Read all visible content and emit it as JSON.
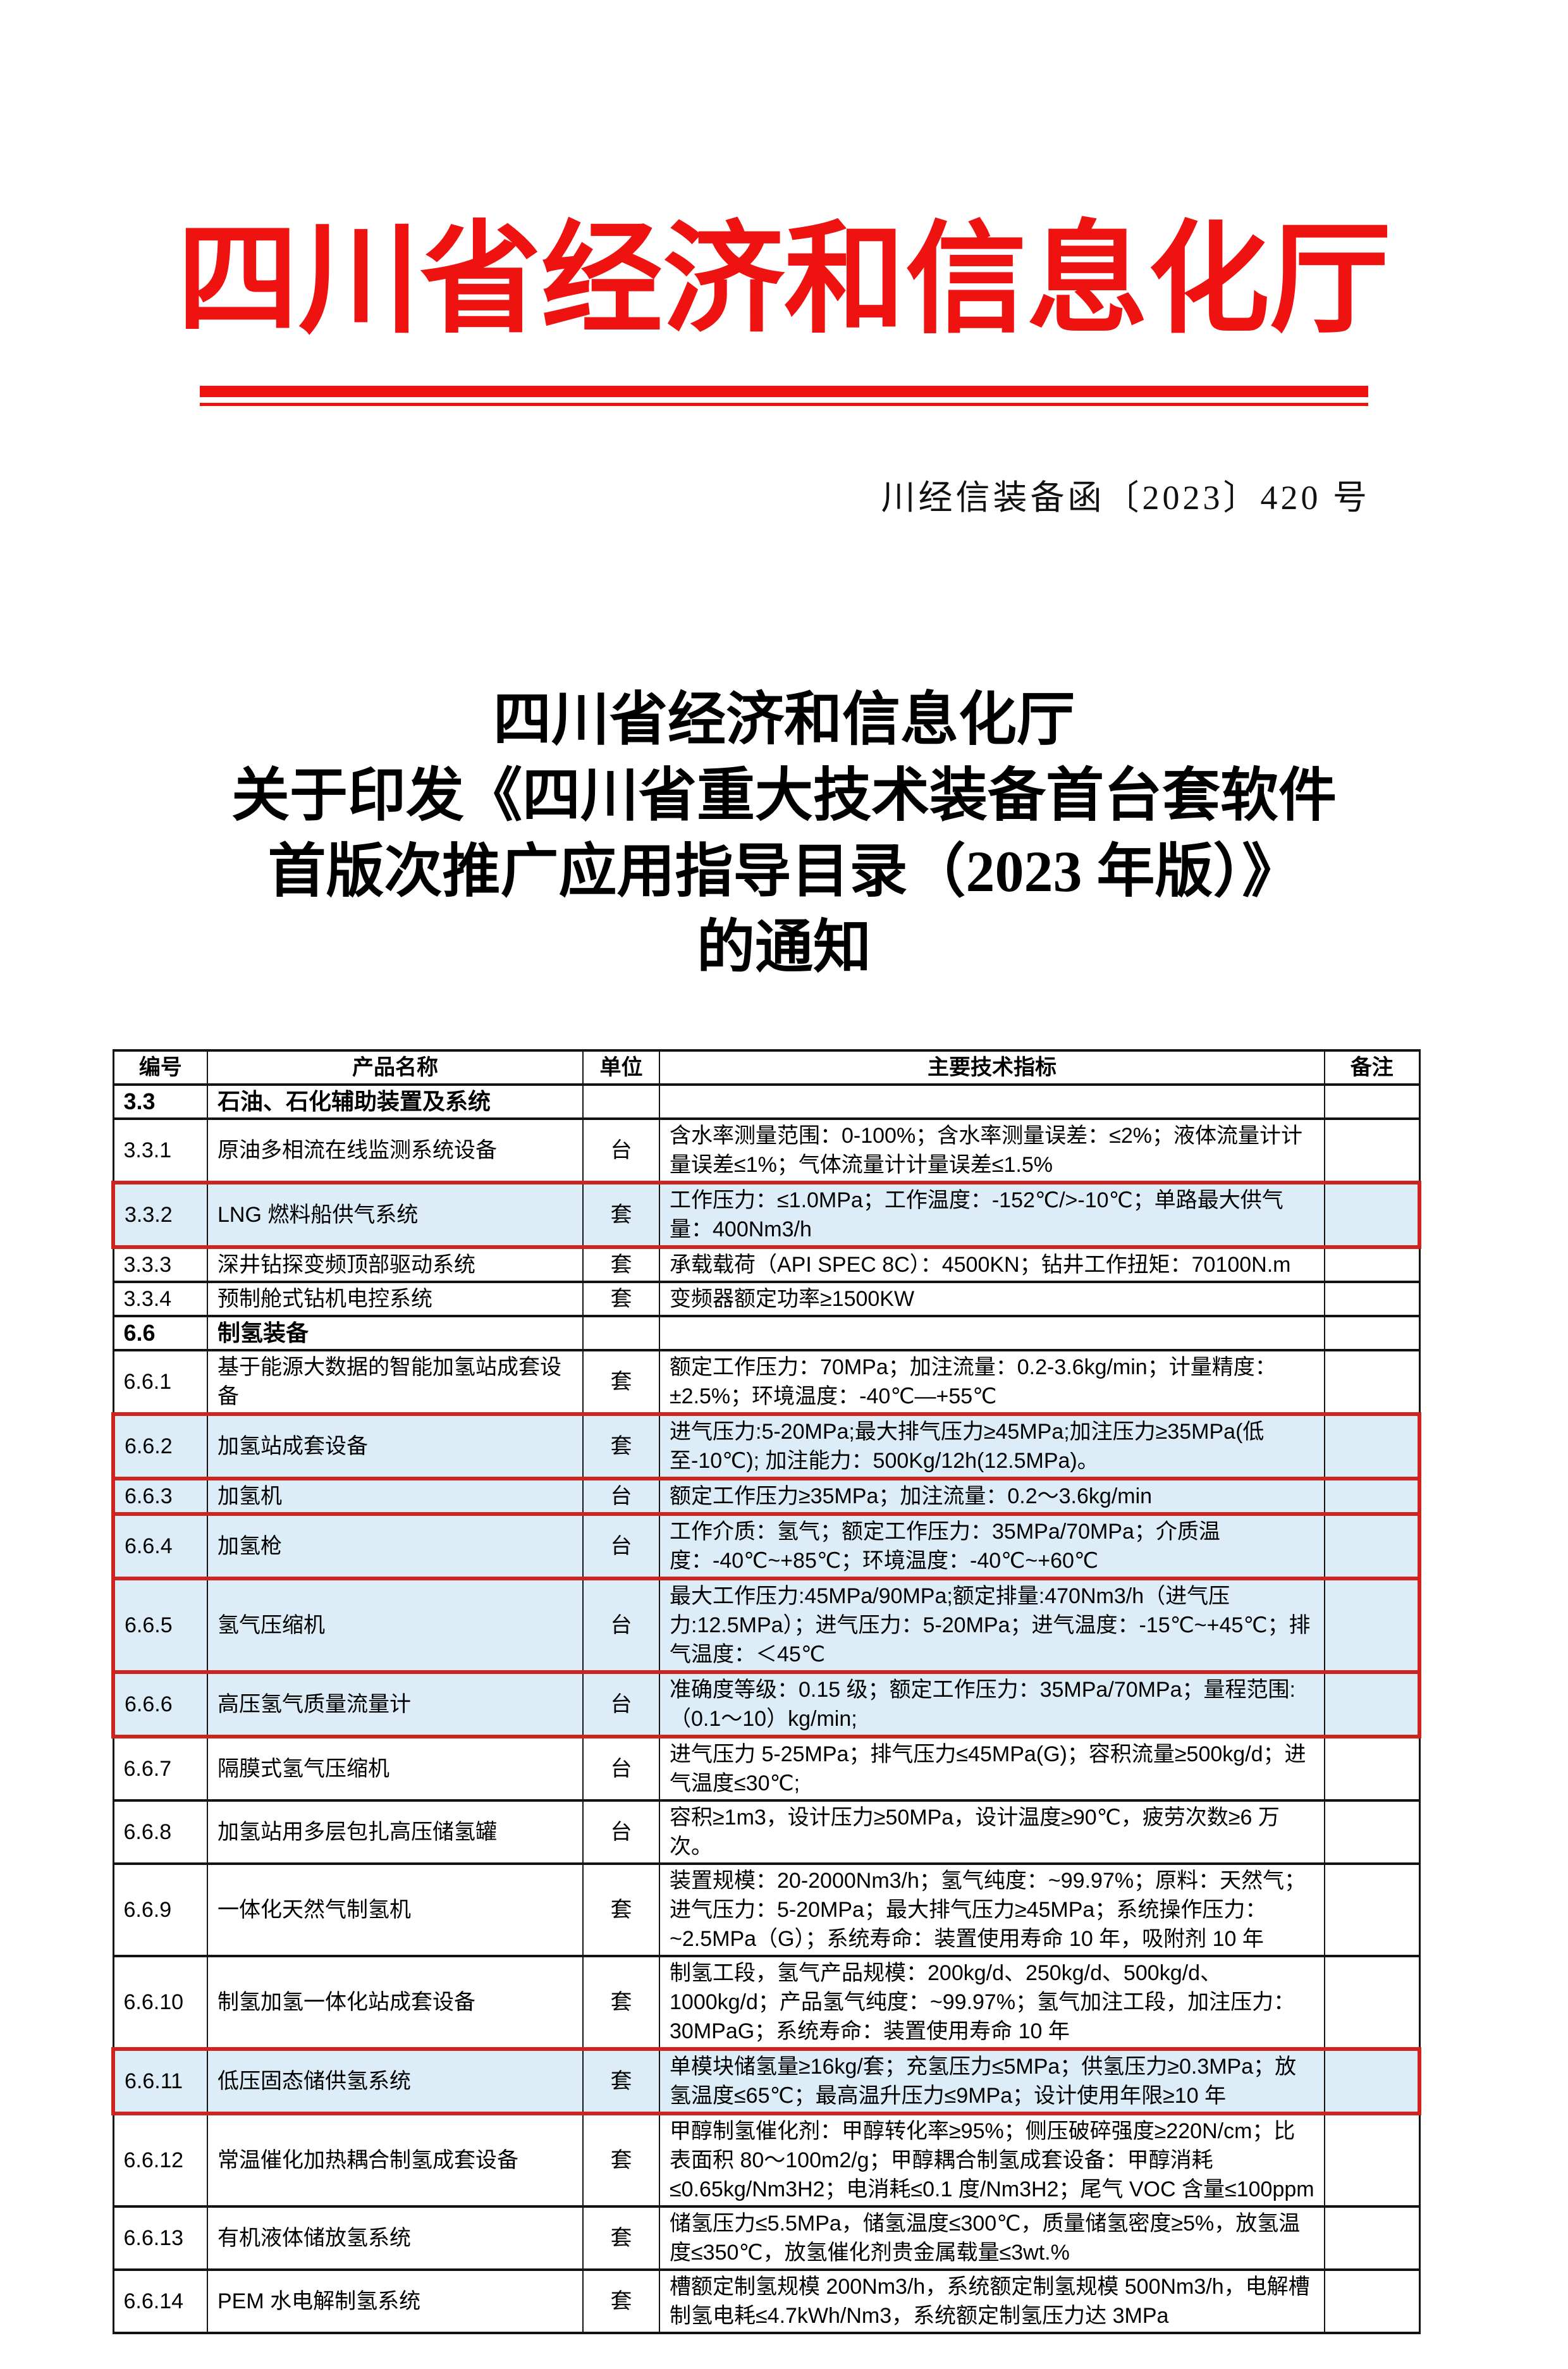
{
  "header": {
    "agency": "四川省经济和信息化厅",
    "doc_number": "川经信装备函〔2023〕420 号"
  },
  "notice": {
    "title_lines": [
      "四川省经济和信息化厅",
      "关于印发《四川省重大技术装备首台套软件",
      "首版次推广应用指导目录（2023 年版）》",
      "的通知"
    ]
  },
  "colors": {
    "letterhead_red": "#ee1210",
    "highlight_border_red": "#cf241d",
    "highlight_fill_blue": "#dcedf8",
    "table_border_black": "#141414"
  },
  "table": {
    "headers": [
      "编号",
      "产品名称",
      "单位",
      "主要技术指标",
      "备注"
    ],
    "rows": [
      {
        "num": "3.3",
        "name": "石油、石化辅助装置及系统",
        "unit": "",
        "spec": "",
        "note": "",
        "section": true,
        "highlighted": false
      },
      {
        "num": "3.3.1",
        "name": "原油多相流在线监测系统设备",
        "unit": "台",
        "spec": "含水率测量范围：0-100%；含水率测量误差：≤2%；液体流量计计量误差≤1%；气体流量计计量误差≤1.5%",
        "note": "",
        "section": false,
        "highlighted": false
      },
      {
        "num": "3.3.2",
        "name": "LNG 燃料船供气系统",
        "unit": "套",
        "spec": "工作压力：≤1.0MPa；工作温度：-152℃/>-10℃；单路最大供气量：400Nm3/h",
        "note": "",
        "section": false,
        "highlighted": true
      },
      {
        "num": "3.3.3",
        "name": "深井钻探变频顶部驱动系统",
        "unit": "套",
        "spec": "承载载荷（API SPEC 8C）：4500KN；钻井工作扭矩：70100N.m",
        "note": "",
        "section": false,
        "highlighted": false
      },
      {
        "num": "3.3.4",
        "name": "预制舱式钻机电控系统",
        "unit": "套",
        "spec": "变频器额定功率≥1500KW",
        "note": "",
        "section": false,
        "highlighted": false
      },
      {
        "num": "6.6",
        "name": "制氢装备",
        "unit": "",
        "spec": "",
        "note": "",
        "section": true,
        "highlighted": false
      },
      {
        "num": "6.6.1",
        "name": "基于能源大数据的智能加氢站成套设备",
        "unit": "套",
        "spec": "额定工作压力：70MPa；加注流量：0.2-3.6kg/min；计量精度：±2.5%；环境温度：-40℃—+55℃",
        "note": "",
        "section": false,
        "highlighted": false
      },
      {
        "num": "6.6.2",
        "name": "加氢站成套设备",
        "unit": "套",
        "spec": "进气压力:5-20MPa;最大排气压力≥45MPa;加注压力≥35MPa(低至-10℃); 加注能力：500Kg/12h(12.5MPa)。",
        "note": "",
        "section": false,
        "highlighted": true
      },
      {
        "num": "6.6.3",
        "name": "加氢机",
        "unit": "台",
        "spec": "额定工作压力≥35MPa；加注流量：0.2～3.6kg/min",
        "note": "",
        "section": false,
        "highlighted": true
      },
      {
        "num": "6.6.4",
        "name": "加氢枪",
        "unit": "台",
        "spec": "工作介质：氢气；额定工作压力：35MPa/70MPa；介质温度：-40℃~+85℃；环境温度：-40℃~+60℃",
        "note": "",
        "section": false,
        "highlighted": true
      },
      {
        "num": "6.6.5",
        "name": "氢气压缩机",
        "unit": "台",
        "spec": "最大工作压力:45MPa/90MPa;额定排量:470Nm3/h（进气压力:12.5MPa）；进气压力：5-20MPa；进气温度：-15℃~+45℃；排气温度：＜45℃",
        "note": "",
        "section": false,
        "highlighted": true
      },
      {
        "num": "6.6.6",
        "name": "高压氢气质量流量计",
        "unit": "台",
        "spec": "准确度等级：0.15 级；额定工作压力：35MPa/70MPa；量程范围:（0.1～10）kg/min;",
        "note": "",
        "section": false,
        "highlighted": true
      },
      {
        "num": "6.6.7",
        "name": "隔膜式氢气压缩机",
        "unit": "台",
        "spec": "进气压力 5-25MPa；排气压力≤45MPa(G)；容积流量≥500kg/d；进气温度≤30℃;",
        "note": "",
        "section": false,
        "highlighted": false
      },
      {
        "num": "6.6.8",
        "name": "加氢站用多层包扎高压储氢罐",
        "unit": "台",
        "spec": "容积≥1m3，设计压力≥50MPa，设计温度≥90℃，疲劳次数≥6 万次。",
        "note": "",
        "section": false,
        "highlighted": false
      },
      {
        "num": "6.6.9",
        "name": "一体化天然气制氢机",
        "unit": "套",
        "spec": "装置规模：20-2000Nm3/h；氢气纯度：~99.97%；原料：天然气；进气压力：5-20MPa；最大排气压力≥45MPa；系统操作压力：~2.5MPa（G）；系统寿命：装置使用寿命 10 年，吸附剂 10 年",
        "note": "",
        "section": false,
        "highlighted": false
      },
      {
        "num": "6.6.10",
        "name": "制氢加氢一体化站成套设备",
        "unit": "套",
        "spec": "制氢工段，氢气产品规模：200kg/d、250kg/d、500kg/d、1000kg/d；产品氢气纯度：~99.97%；氢气加注工段，加注压力：30MPaG；系统寿命：装置使用寿命 10 年",
        "note": "",
        "section": false,
        "highlighted": false
      },
      {
        "num": "6.6.11",
        "name": "低压固态储供氢系统",
        "unit": "套",
        "spec": "单模块储氢量≥16kg/套；充氢压力≤5MPa；供氢压力≥0.3MPa；放氢温度≤65℃；最高温升压力≤9MPa；设计使用年限≥10 年",
        "note": "",
        "section": false,
        "highlighted": true
      },
      {
        "num": "6.6.12",
        "name": "常温催化加热耦合制氢成套设备",
        "unit": "套",
        "spec": "甲醇制氢催化剂：甲醇转化率≥95%；侧压破碎强度≥220N/cm；比表面积 80～100m2/g；甲醇耦合制氢成套设备：甲醇消耗≤0.65kg/Nm3H2；电消耗≤0.1 度/Nm3H2；尾气 VOC 含量≤100ppm",
        "note": "",
        "section": false,
        "highlighted": false
      },
      {
        "num": "6.6.13",
        "name": "有机液体储放氢系统",
        "unit": "套",
        "spec": "储氢压力≤5.5MPa，储氢温度≤300℃，质量储氢密度≥5%，放氢温度≤350℃，放氢催化剂贵金属载量≤3wt.%",
        "note": "",
        "section": false,
        "highlighted": false
      },
      {
        "num": "6.6.14",
        "name": "PEM 水电解制氢系统",
        "unit": "套",
        "spec": "槽额定制氢规模 200Nm3/h，系统额定制氢规模 500Nm3/h，电解槽制氢电耗≤4.7kWh/Nm3，系统额定制氢压力达 3MPa",
        "note": "",
        "section": false,
        "highlighted": false
      }
    ]
  }
}
